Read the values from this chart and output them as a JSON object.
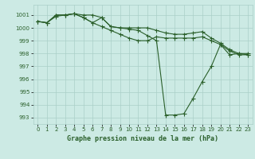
{
  "title": "Graphe pression niveau de la mer (hPa)",
  "bg_color": "#cceae4",
  "grid_color": "#aacfc8",
  "line_color": "#2a5f2a",
  "xlim": [
    -0.5,
    23.5
  ],
  "ylim": [
    992.5,
    1001.8
  ],
  "yticks": [
    993,
    994,
    995,
    996,
    997,
    998,
    999,
    1000,
    1001
  ],
  "xticks": [
    0,
    1,
    2,
    3,
    4,
    5,
    6,
    7,
    8,
    9,
    10,
    11,
    12,
    13,
    14,
    15,
    16,
    17,
    18,
    19,
    20,
    21,
    22,
    23
  ],
  "line1_x": [
    0,
    1,
    2,
    3,
    4,
    5,
    6,
    7,
    8,
    9,
    10,
    11,
    12,
    13,
    14,
    15,
    16,
    17,
    18,
    19,
    20,
    21,
    22,
    23
  ],
  "line1_y": [
    1000.5,
    1000.4,
    1001.0,
    1001.0,
    1001.1,
    1001.0,
    1001.0,
    1000.8,
    1000.1,
    1000.0,
    999.9,
    999.8,
    999.4,
    999.0,
    993.2,
    993.2,
    993.3,
    994.5,
    995.8,
    997.0,
    998.7,
    997.9,
    998.0,
    998.0
  ],
  "line2_x": [
    0,
    1,
    2,
    3,
    4,
    5,
    6,
    7,
    8,
    9,
    10,
    11,
    12,
    13,
    14,
    15,
    16,
    17,
    18,
    19,
    20,
    21,
    22,
    23
  ],
  "line2_y": [
    1000.5,
    1000.4,
    1001.0,
    1001.0,
    1001.1,
    1000.8,
    1000.4,
    1000.1,
    999.8,
    999.5,
    999.2,
    999.0,
    999.0,
    999.3,
    999.2,
    999.2,
    999.2,
    999.2,
    999.3,
    999.0,
    998.7,
    998.2,
    997.9,
    997.9
  ],
  "line3_x": [
    0,
    1,
    2,
    3,
    4,
    5,
    6,
    7,
    8,
    9,
    10,
    11,
    12,
    13,
    14,
    15,
    16,
    17,
    18,
    19,
    20,
    21,
    22,
    23
  ],
  "line3_y": [
    1000.5,
    1000.4,
    1000.9,
    1001.0,
    1001.1,
    1000.8,
    1000.4,
    1000.8,
    1000.1,
    1000.0,
    1000.0,
    1000.0,
    1000.0,
    999.8,
    999.6,
    999.5,
    999.5,
    999.6,
    999.7,
    999.2,
    998.8,
    998.3,
    998.0,
    997.9
  ]
}
